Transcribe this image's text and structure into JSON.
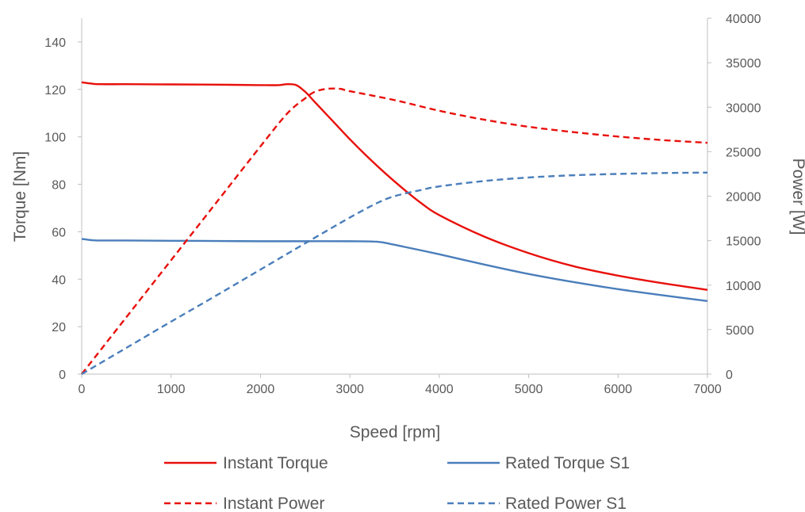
{
  "chart_data": {
    "type": "line",
    "xlabel": "Speed [rpm]",
    "ylabel": "Torque [Nm]",
    "y2label": "Power [W]",
    "xlim": [
      0,
      7000
    ],
    "ylim": [
      0,
      150
    ],
    "y2lim": [
      0,
      40000
    ],
    "x_ticks": [
      0,
      1000,
      2000,
      3000,
      4000,
      5000,
      6000,
      7000
    ],
    "y_ticks": [
      0,
      20,
      40,
      60,
      80,
      100,
      120,
      140
    ],
    "y2_ticks": [
      0,
      5000,
      10000,
      15000,
      20000,
      25000,
      30000,
      35000,
      40000
    ],
    "grid": false,
    "legend_position": "bottom",
    "series": [
      {
        "name": "Instant Torque",
        "axis": "left",
        "color": "#e8100c",
        "dash": "solid",
        "x": [
          0,
          100,
          200,
          500,
          1000,
          1500,
          2000,
          2200,
          2300,
          2400,
          2500,
          2600,
          2800,
          3000,
          3200,
          3400,
          3600,
          3800,
          4000,
          4500,
          5000,
          5500,
          6000,
          6500,
          7000
        ],
        "y": [
          123,
          122.5,
          122.2,
          122.2,
          122.1,
          122.0,
          121.8,
          121.8,
          122.2,
          121.8,
          119,
          115,
          107,
          99,
          91.5,
          84.5,
          78,
          72,
          67,
          58,
          51,
          45.5,
          41.5,
          38.3,
          35.5
        ]
      },
      {
        "name": "Rated Torque S1",
        "axis": "left",
        "color": "#4a7ebb",
        "dash": "solid",
        "x": [
          0,
          100,
          200,
          500,
          1000,
          1500,
          2000,
          2500,
          3000,
          3300,
          3500,
          4000,
          4500,
          5000,
          5500,
          6000,
          6500,
          7000
        ],
        "y": [
          57,
          56.5,
          56.3,
          56.3,
          56.2,
          56.1,
          56.0,
          56.0,
          56.0,
          55.8,
          54.5,
          50.5,
          46.2,
          42.2,
          38.8,
          35.8,
          33.2,
          30.8
        ]
      },
      {
        "name": "Instant Power",
        "axis": "right",
        "color": "#e8100c",
        "dash": "dashed",
        "x": [
          0,
          500,
          1000,
          1500,
          2000,
          2300,
          2500,
          2600,
          2700,
          2800,
          2900,
          3000,
          3500,
          4000,
          4500,
          5000,
          5500,
          6000,
          6500,
          7000
        ],
        "y": [
          0,
          6400,
          12800,
          19200,
          25600,
          29300,
          31000,
          31700,
          32000,
          32100,
          32050,
          31800,
          30800,
          29600,
          28600,
          27800,
          27200,
          26700,
          26300,
          26000
        ]
      },
      {
        "name": "Rated Power S1",
        "axis": "right",
        "color": "#4a7ebb",
        "dash": "dashed",
        "x": [
          0,
          500,
          1000,
          1500,
          2000,
          2500,
          3000,
          3300,
          3500,
          3800,
          4000,
          4500,
          5000,
          5500,
          6000,
          6500,
          7000
        ],
        "y": [
          0,
          2950,
          5900,
          8800,
          11750,
          14700,
          17600,
          19200,
          20000,
          20700,
          21100,
          21700,
          22100,
          22350,
          22500,
          22600,
          22650
        ]
      }
    ]
  }
}
